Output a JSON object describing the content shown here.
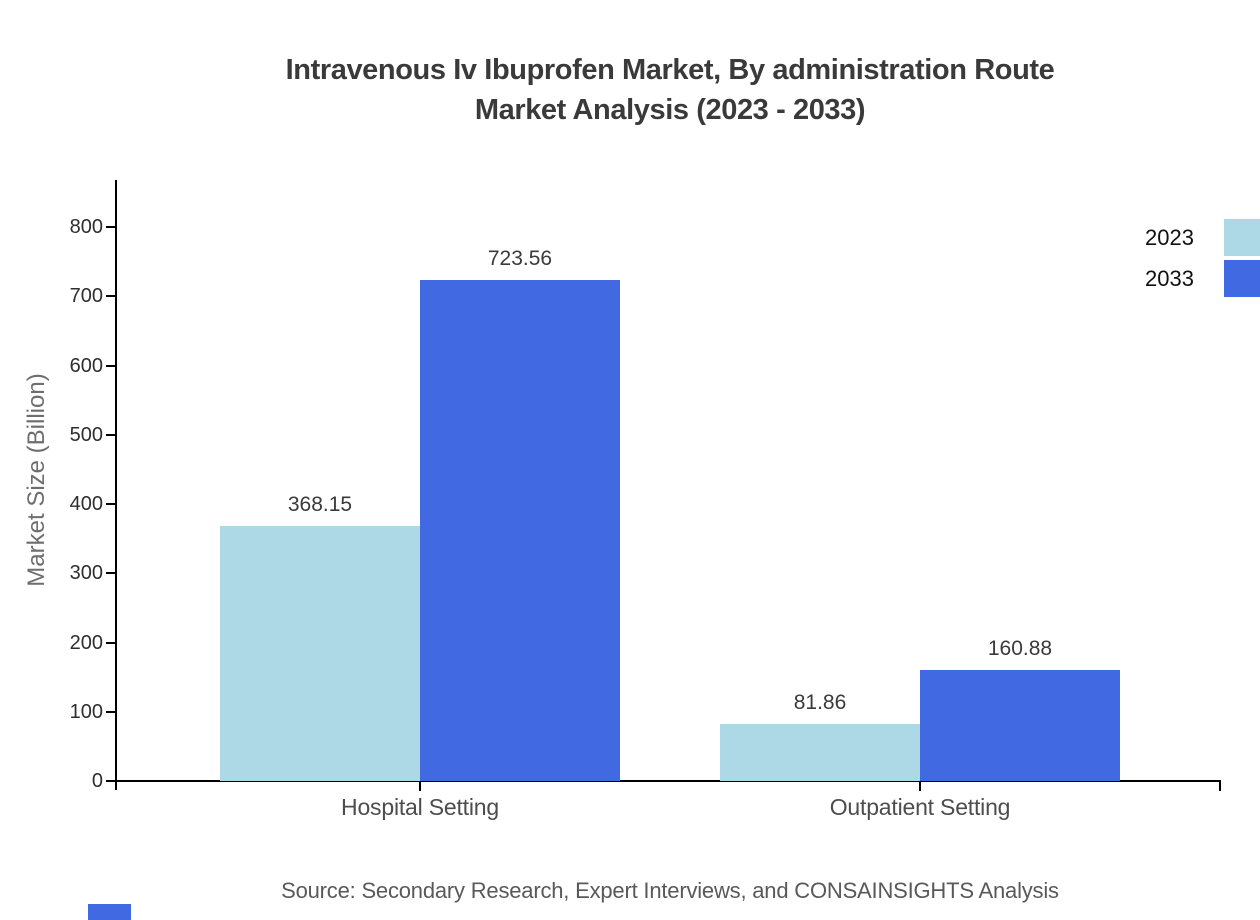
{
  "title": {
    "line1": "Intravenous Iv Ibuprofen Market, By administration Route",
    "line2": "Market Analysis (2023 - 2033)"
  },
  "source_note": "Source: Secondary Research, Expert Interviews, and CONSAINSIGHTS Analysis",
  "chart_data": {
    "type": "bar",
    "title": "Intravenous Iv Ibuprofen Market, By administration Route Market Analysis (2023 - 2033)",
    "categories": [
      "Hospital Setting",
      "Outpatient Setting"
    ],
    "series": [
      {
        "name": "2023",
        "color": "#ADD8E6",
        "values": [
          368.15,
          81.86
        ]
      },
      {
        "name": "2033",
        "color": "#4169E1",
        "values": [
          723.56,
          160.88
        ]
      }
    ],
    "xlabel": "",
    "ylabel": "Market Size (Billion)",
    "ylim": [
      0,
      860
    ],
    "yticks": [
      0,
      100,
      200,
      300,
      400,
      500,
      600,
      700,
      800
    ],
    "grid": false,
    "legend_position": "top-right",
    "value_label_format": "2-decimals"
  },
  "colors": {
    "title": "#3A3A3A",
    "axis": "#000000",
    "tick_label": "#2E2E2E",
    "ylabel": "#6E6E6E",
    "category_label": "#4D4D4D",
    "value_label": "#3A3A3A",
    "source": "#595959",
    "brand_mark": "#4169E1"
  }
}
